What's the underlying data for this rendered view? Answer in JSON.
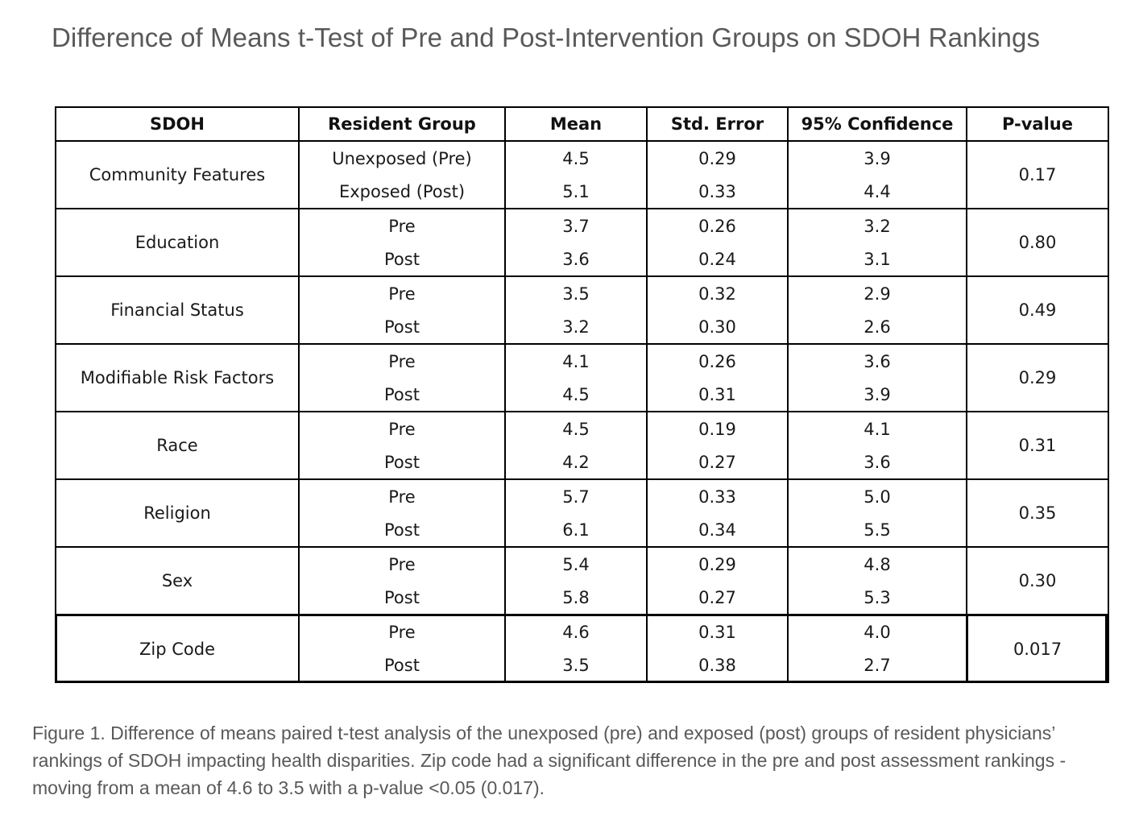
{
  "chart_data": {
    "type": "table",
    "title": "Difference of Means t-Test of Pre and Post-Intervention Groups on SDOH Rankings",
    "columns": [
      "SDOH",
      "Resident Group",
      "Mean",
      "Std. Error",
      "95% Confidence",
      "P-value"
    ],
    "rows": [
      {
        "sdoh": "Community Features",
        "p_value": "0.17",
        "groups": [
          {
            "group": "Unexposed (Pre)",
            "mean": "4.5",
            "std_error": "0.29",
            "ci": "3.9"
          },
          {
            "group": "Exposed (Post)",
            "mean": "5.1",
            "std_error": "0.33",
            "ci": "4.4"
          }
        ]
      },
      {
        "sdoh": "Education",
        "p_value": "0.80",
        "groups": [
          {
            "group": "Pre",
            "mean": "3.7",
            "std_error": "0.26",
            "ci": "3.2"
          },
          {
            "group": "Post",
            "mean": "3.6",
            "std_error": "0.24",
            "ci": "3.1"
          }
        ]
      },
      {
        "sdoh": "Financial Status",
        "p_value": "0.49",
        "groups": [
          {
            "group": "Pre",
            "mean": "3.5",
            "std_error": "0.32",
            "ci": "2.9"
          },
          {
            "group": "Post",
            "mean": "3.2",
            "std_error": "0.30",
            "ci": "2.6"
          }
        ]
      },
      {
        "sdoh": "Modifiable Risk Factors",
        "p_value": "0.29",
        "groups": [
          {
            "group": "Pre",
            "mean": "4.1",
            "std_error": "0.26",
            "ci": "3.6"
          },
          {
            "group": "Post",
            "mean": "4.5",
            "std_error": "0.31",
            "ci": "3.9"
          }
        ]
      },
      {
        "sdoh": "Race",
        "p_value": "0.31",
        "groups": [
          {
            "group": "Pre",
            "mean": "4.5",
            "std_error": "0.19",
            "ci": "4.1"
          },
          {
            "group": "Post",
            "mean": "4.2",
            "std_error": "0.27",
            "ci": "3.6"
          }
        ]
      },
      {
        "sdoh": "Religion",
        "p_value": "0.35",
        "groups": [
          {
            "group": "Pre",
            "mean": "5.7",
            "std_error": "0.33",
            "ci": "5.0"
          },
          {
            "group": "Post",
            "mean": "6.1",
            "std_error": "0.34",
            "ci": "5.5"
          }
        ]
      },
      {
        "sdoh": "Sex",
        "p_value": "0.30",
        "groups": [
          {
            "group": "Pre",
            "mean": "5.4",
            "std_error": "0.29",
            "ci": "4.8"
          },
          {
            "group": "Post",
            "mean": "5.8",
            "std_error": "0.27",
            "ci": "5.3"
          }
        ]
      },
      {
        "sdoh": "Zip Code",
        "p_value": "0.017",
        "highlighted": true,
        "groups": [
          {
            "group": "Pre",
            "mean": "4.6",
            "std_error": "0.31",
            "ci": "4.0"
          },
          {
            "group": "Post",
            "mean": "3.5",
            "std_error": "0.38",
            "ci": "2.7"
          }
        ]
      }
    ]
  },
  "caption": "Figure 1. Difference of means paired t-test analysis of the unexposed (pre) and exposed (post) groups of resident physicians’ rankings of SDOH impacting health disparities. Zip code had a significant difference in the pre and post assessment rankings - moving from a mean of 4.6 to 3.5 with a p-value <0.05 (0.017).",
  "colors": {
    "title_text": "#595959",
    "caption_text": "#595959",
    "table_text": "#1a1a1a",
    "border": "#000000"
  }
}
